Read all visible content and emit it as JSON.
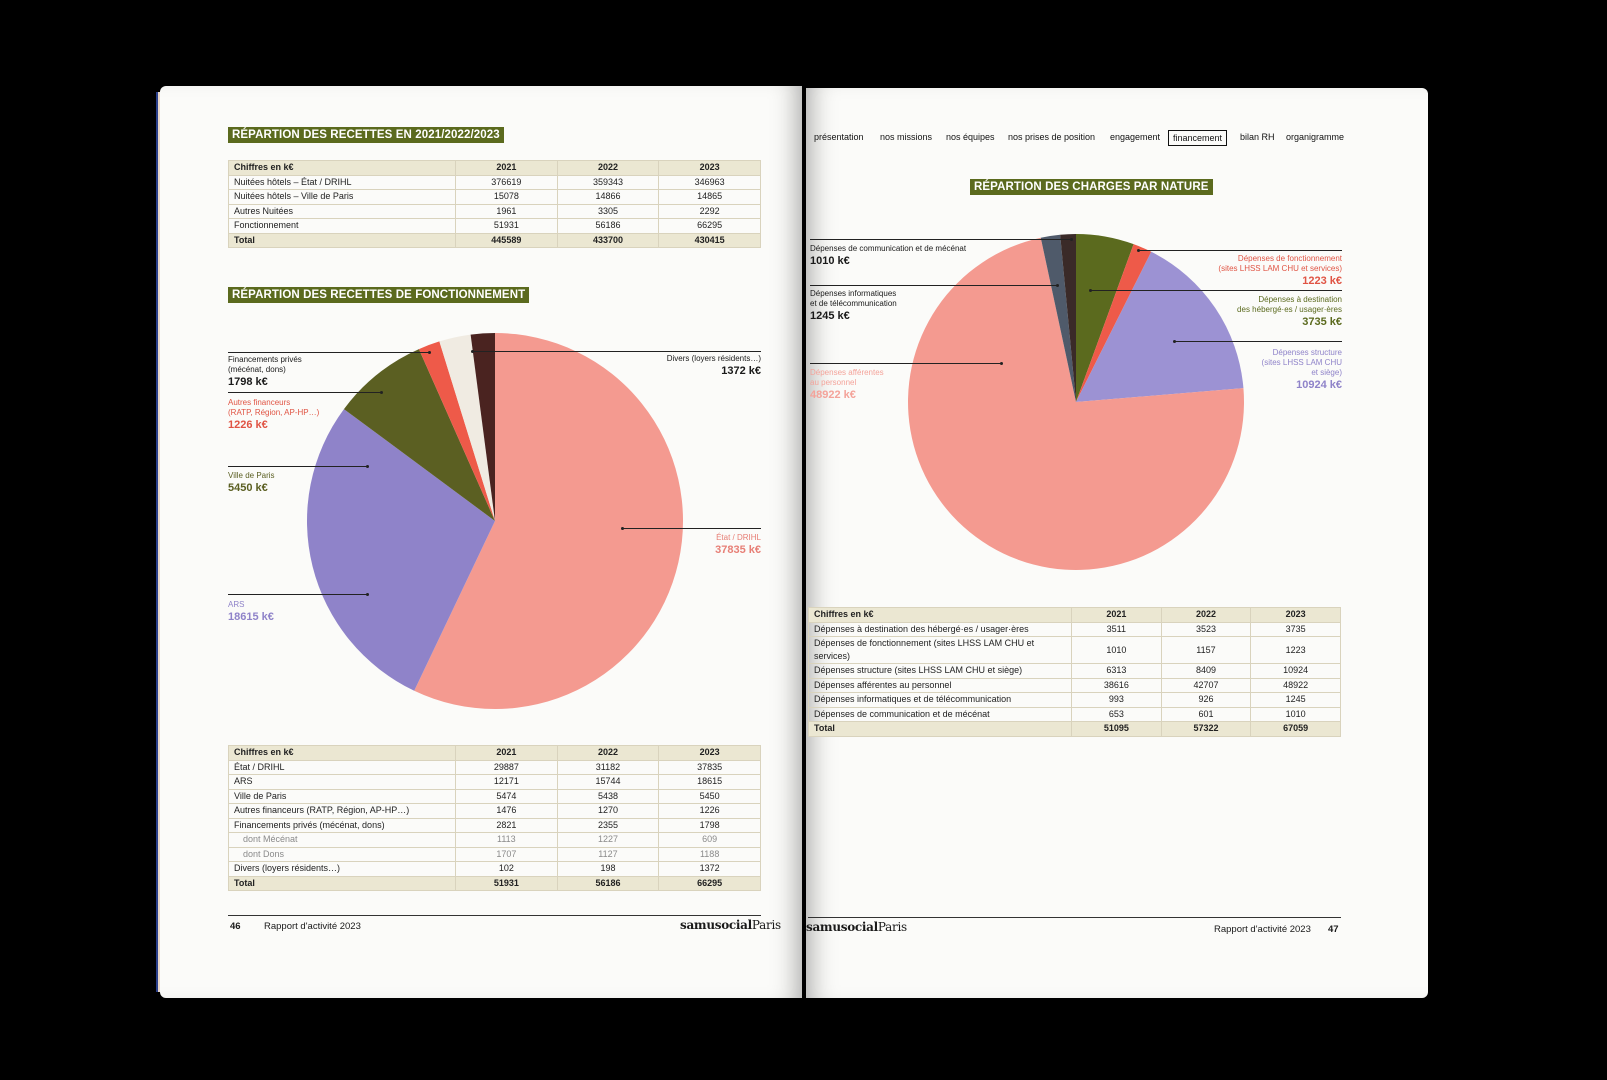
{
  "colors": {
    "etat": "#f49a90",
    "ars": "#8f83c9",
    "ville": "#5b5f22",
    "autres": "#ee5a49",
    "prives": "#f0ebe2",
    "divers": "#4a2320",
    "personnel": "#f49a90",
    "structure": "#9c92d3",
    "hebergees": "#5b6a1e",
    "fonctionnement": "#ee5a49",
    "informatique": "#4f5a6a",
    "communication": "#3a2a28",
    "heading": "#5b6a1e"
  },
  "left": {
    "heading1": "RÉPARTION DES RECETTES EN 2021/2022/2023",
    "table1": {
      "headers": [
        "Chiffres en k€",
        "2021",
        "2022",
        "2023"
      ],
      "rows": [
        [
          "Nuitées hôtels – État / DRIHL",
          "376619",
          "359343",
          "346963"
        ],
        [
          "Nuitées hôtels – Ville de Paris",
          "15078",
          "14866",
          "14865"
        ],
        [
          "Autres Nuitées",
          "1961",
          "3305",
          "2292"
        ],
        [
          "Fonctionnement",
          "51931",
          "56186",
          "66295"
        ]
      ],
      "total": [
        "Total",
        "445589",
        "433700",
        "430415"
      ]
    },
    "heading2": "RÉPARTION DES RECETTES DE FONCTIONNEMENT",
    "callouts": {
      "prives_label1": "Financements privés",
      "prives_label2": "(mécénat, dons)",
      "prives_value": "1798 k€",
      "autres_label1": "Autres financeurs",
      "autres_label2": "(RATP, Région, AP-HP…)",
      "autres_value": "1226 k€",
      "ville_label": "Ville de Paris",
      "ville_value": "5450 k€",
      "ars_label": "ARS",
      "ars_value": "18615 k€",
      "divers_label": "Divers (loyers résidents…)",
      "divers_value": "1372 k€",
      "etat_label": "État / DRIHL",
      "etat_value": "37835 k€"
    },
    "table2": {
      "headers": [
        "Chiffres en k€",
        "2021",
        "2022",
        "2023"
      ],
      "rows": [
        [
          "État / DRIHL",
          "29887",
          "31182",
          "37835"
        ],
        [
          "ARS",
          "12171",
          "15744",
          "18615"
        ],
        [
          "Ville de Paris",
          "5474",
          "5438",
          "5450"
        ],
        [
          "Autres financeurs (RATP, Région, AP-HP…)",
          "1476",
          "1270",
          "1226"
        ],
        [
          "Financements privés (mécénat, dons)",
          "2821",
          "2355",
          "1798"
        ]
      ],
      "subrows": [
        [
          "dont Mécénat",
          "1113",
          "1227",
          "609"
        ],
        [
          "dont Dons",
          "1707",
          "1127",
          "1188"
        ]
      ],
      "rows_after": [
        [
          "Divers (loyers résidents…)",
          "102",
          "198",
          "1372"
        ]
      ],
      "total": [
        "Total",
        "51931",
        "56186",
        "66295"
      ]
    },
    "footer": {
      "page_number": "46",
      "title": "Rapport d'activité 2023",
      "brand_bold": "samusocial",
      "brand_light": "Paris"
    }
  },
  "right": {
    "nav": [
      "présentation",
      "nos missions",
      "nos équipes",
      "nos prises de position",
      "engagement",
      "financement",
      "bilan RH",
      "organigramme"
    ],
    "nav_active": "financement",
    "heading": "RÉPARTION DES CHARGES PAR NATURE",
    "callouts": {
      "communication_label": "Dépenses de communication et de mécénat",
      "communication_value": "1010 k€",
      "informatique_label1": "Dépenses informatiques",
      "informatique_label2": "et de télécommunication",
      "informatique_value": "1245 k€",
      "personnel_label1": "Dépenses afférentes",
      "personnel_label2": "au personnel",
      "personnel_value": "48922 k€",
      "fonctionnement_label1": "Dépenses de fonctionnement",
      "fonctionnement_label2": "(sites LHSS LAM CHU et services)",
      "fonctionnement_value": "1223 k€",
      "hebergees_label1": "Dépenses à destination",
      "hebergees_label2": "des hébergé·es / usager·ères",
      "hebergees_value": "3735 k€",
      "structure_label1": "Dépenses structure",
      "structure_label2": "(sites LHSS LAM CHU",
      "structure_label3": "et siège)",
      "structure_value": "10924 k€"
    },
    "table": {
      "headers": [
        "Chiffres en k€",
        "2021",
        "2022",
        "2023"
      ],
      "rows": [
        [
          "Dépenses à destination des hébergé·es / usager·ères",
          "3511",
          "3523",
          "3735"
        ],
        [
          "Dépenses de fonctionnement (sites LHSS LAM CHU et services)",
          "1010",
          "1157",
          "1223"
        ],
        [
          "Dépenses structure (sites LHSS LAM CHU et siège)",
          "6313",
          "8409",
          "10924"
        ],
        [
          "Dépenses afférentes au personnel",
          "38616",
          "42707",
          "48922"
        ],
        [
          "Dépenses informatiques et de télécommunication",
          "993",
          "926",
          "1245"
        ],
        [
          "Dépenses de communication et de mécénat",
          "653",
          "601",
          "1010"
        ]
      ],
      "total": [
        "Total",
        "51095",
        "57322",
        "67059"
      ]
    },
    "footer": {
      "page_number": "47",
      "title": "Rapport d'activité 2023",
      "brand_bold": "samusocial",
      "brand_light": "Paris"
    }
  },
  "chart_data": [
    {
      "type": "pie",
      "categories": [
        "État / DRIHL",
        "ARS",
        "Ville de Paris",
        "Autres financeurs (RATP, Région, AP-HP…)",
        "Financements privés (mécénat, dons)",
        "Divers (loyers résidents…)"
      ],
      "values": [
        37835,
        18615,
        5450,
        1226,
        1798,
        1372
      ],
      "unit": "k€"
    },
    {
      "type": "pie",
      "categories": [
        "Dépenses à destination des hébergé·es / usager·ères",
        "Dépenses de fonctionnement (sites LHSS LAM CHU et services)",
        "Dépenses structure (sites LHSS LAM CHU et siège)",
        "Dépenses afférentes au personnel",
        "Dépenses informatiques et de télécommunication",
        "Dépenses de communication et de mécénat"
      ],
      "values": [
        3735,
        1223,
        10924,
        48922,
        1245,
        1010
      ],
      "unit": "k€"
    }
  ]
}
